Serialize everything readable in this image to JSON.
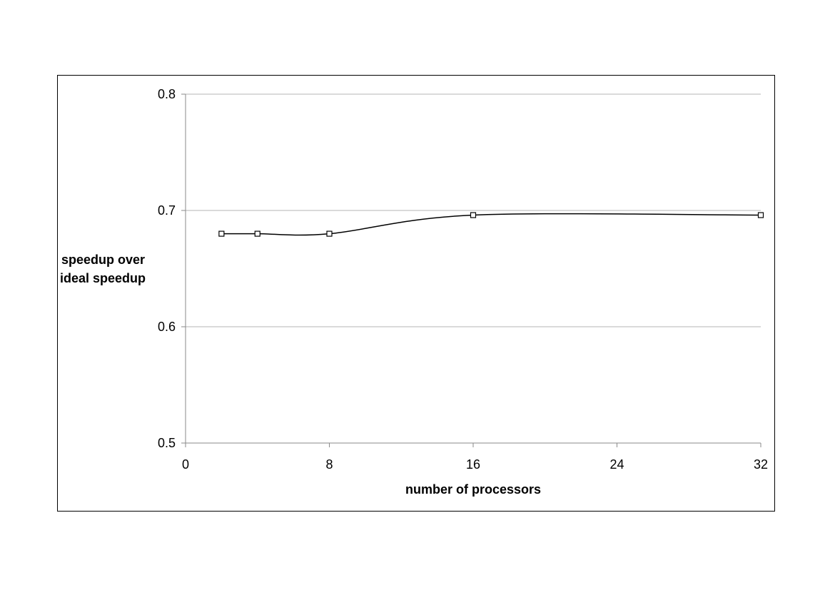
{
  "chart_data": {
    "type": "line",
    "title": "",
    "xlabel": "number of processors",
    "ylabel": [
      "speedup over",
      "ideal speedup"
    ],
    "xlim": [
      0,
      32
    ],
    "ylim": [
      0.5,
      0.8
    ],
    "x_ticks": [
      0,
      8,
      16,
      24,
      32
    ],
    "y_ticks": [
      0.5,
      0.6,
      0.7,
      0.8
    ],
    "y_tick_labels": [
      "0.5",
      "0.6",
      "0.7",
      "0.8"
    ],
    "grid": "horizontal",
    "legend": "none",
    "series": [
      {
        "x": [
          2,
          4,
          8,
          16,
          32
        ],
        "y": [
          0.68,
          0.68,
          0.68,
          0.696,
          0.696
        ],
        "marker": "square",
        "smooth": true,
        "color": "#000000"
      }
    ]
  }
}
